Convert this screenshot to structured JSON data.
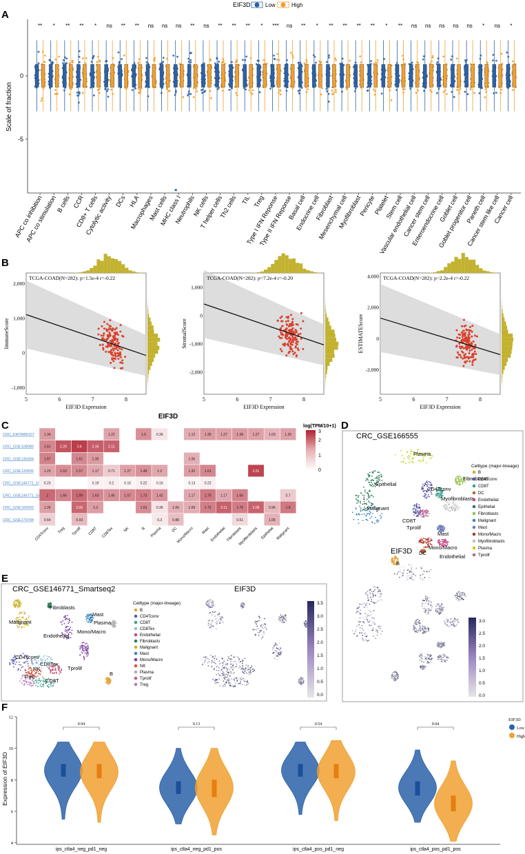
{
  "figure": {
    "panel_labels": [
      "A",
      "B",
      "C",
      "D",
      "E",
      "F"
    ],
    "colors": {
      "low": "#2a62a9",
      "high": "#f0a030",
      "scatter": "#d8432e",
      "hist": "#c2b230",
      "heat_max": "#b0202f",
      "umap_max": "#27285e",
      "link": "#4a86c8"
    }
  },
  "panelA": {
    "legend_title": "EIF3D",
    "legend_low": "Low",
    "legend_high": "High",
    "ylabel": "Scale of fraction",
    "yticks": [
      "0",
      "-5"
    ]
  },
  "panelB": {
    "xlabel": "EIF3D Expression",
    "xticks": [
      "5",
      "6",
      "7",
      "8"
    ],
    "plots": [
      {
        "annot": "TCGA-COAD(N=282): p=1.5e-4 r=-0.22",
        "ylabel": "ImmuneScore",
        "yticks": [
          "2,000",
          "1,000",
          "0",
          "-1,000"
        ],
        "ylim": [
          -1200,
          2300
        ],
        "line": [
          1100,
          -80
        ]
      },
      {
        "annot": "TCGA-COAD(N=282): p=7.2e-4 r=-0.20",
        "ylabel": "StromalScore",
        "yticks": [
          "1,000",
          "0",
          "-1,000",
          "-2,000"
        ],
        "ylim": [
          -2800,
          1500
        ],
        "line": [
          400,
          -1050
        ]
      },
      {
        "annot": "TCGA-COAD(N=282): p=2.2e-4 r=-0.22",
        "ylabel": "ESTIMATEScore",
        "yticks": [
          "4,000",
          "2,000",
          "0",
          "-2,000"
        ],
        "ylim": [
          -3600,
          4200
        ],
        "line": [
          1300,
          -1050
        ]
      }
    ]
  },
  "panelC": {
    "title": "EIF3D",
    "legend_title": "log(TPM/10+1)",
    "legend_ticks": [
      "3",
      "2",
      "1",
      "0"
    ]
  },
  "panelD": {
    "title": "CRC_GSE166555",
    "feature_title": "EIF3D",
    "legend_title": "Celltype (major-lineage)",
    "legend_items": [
      "B",
      "CD4Tconv",
      "CD8T",
      "DC",
      "Endothelial",
      "Epithelial",
      "Fibroblasts",
      "Malignant",
      "Mast",
      "Mono/Macro",
      "Myofibroblasts",
      "Plasma",
      "Tprolif"
    ],
    "legend_colors": [
      "#e6a33a",
      "#5a5aa8",
      "#3f9f8d",
      "#b06a3a",
      "#c84a83",
      "#2e7d55",
      "#96c24b",
      "#3f86b8",
      "#6f7ab8",
      "#b8382a",
      "#c0c0c0",
      "#c9cc1a",
      "#b86a9c"
    ],
    "cluster_labels": [
      "Plasma",
      "Fibroblasts",
      "Epithelial",
      "CD4Tconv",
      "Myofibroblasts",
      "Malignant",
      "CD8T",
      "Tprolif",
      "Mast",
      "Mono/Macro",
      "DC",
      "Endothelial",
      "B"
    ],
    "colorbar_ticks": [
      "3.0",
      "2.5",
      "2.0",
      "1.5",
      "1.0",
      "0.5",
      "0.0"
    ]
  },
  "panelE": {
    "title": "CRC_GSE146771_Smartseq2",
    "feature_title": "EIF3D",
    "legend_title": "Celltype (major-lineage)",
    "legend_items": [
      "B",
      "CD4Tconv",
      "CD8T",
      "CD8Tex",
      "Endothelial",
      "Fibroblasts",
      "Malignant",
      "Mast",
      "Mono/Macro",
      "NK",
      "Plasma",
      "Tprolif",
      "Treg"
    ],
    "legend_colors": [
      "#e6a33a",
      "#5a5aa8",
      "#3f9f8d",
      "#8fc1d8",
      "#c84a83",
      "#2e7d55",
      "#c9b12a",
      "#3f86b8",
      "#7b3fa0",
      "#d2583a",
      "#b0b0b0",
      "#c05a80",
      "#b87ab8"
    ],
    "cluster_labels": [
      "Fibroblasts",
      "Malignant",
      "Endothelial",
      "Mast",
      "Plasma",
      "Mono/Macro",
      "CD4Tconv",
      "CD8Tex",
      "NK",
      "Tprolif",
      "Treg",
      "CD8T",
      "B"
    ],
    "colorbar_ticks": [
      "3.5",
      "3.0",
      "2.5",
      "2.0",
      "1.5",
      "1.0",
      "0.5",
      "0.0"
    ]
  },
  "panelF": {
    "ylabel": "Expression of EIF3D",
    "yticks": [
      "12",
      "10",
      "8",
      "6",
      "4"
    ],
    "legend_title": "EIF3D",
    "legend_low": "Low",
    "legend_high": "High"
  },
  "chart_data": [
    {
      "type": "scatter",
      "panel": "A",
      "ylabel": "Scale of fraction",
      "ylim": [
        -10,
        3
      ],
      "legend": {
        "title": "EIF3D",
        "entries": [
          "Low",
          "High"
        ],
        "placement": "top"
      },
      "categories": [
        "APC co inhibition",
        "APC co stimulation",
        "B cells",
        "CCR",
        "CD8+ T cells",
        "Cytolytic activity",
        "DCs",
        "HLA",
        "Macrophages",
        "Mast cells",
        "MHC class I",
        "Neutrophils",
        "NK cells",
        "T helper cells",
        "Th2 cells",
        "TIL",
        "Treg",
        "Type I IFN Reponse",
        "Type II IFN Reponse",
        "Basal cell",
        "Endocrine cell",
        "Fibroblast",
        "Mesenchymal cell",
        "Myofibroblast",
        "Pericyte",
        "Platelet",
        "Stem cell",
        "Vascular endothelial cell",
        "Cancer stem cell",
        "Enteroendocrine cell",
        "Goblet cell",
        "Goblet progenitor cell",
        "Paneth cell",
        "Cancer stem like cell",
        "Cancer cell"
      ],
      "significance": [
        "**",
        "*",
        "**",
        "**",
        "*",
        "ns",
        "**",
        "**",
        "ns",
        "ns",
        "ns",
        "**",
        "ns",
        "**",
        "**",
        "**",
        "*",
        "***",
        "ns",
        "**",
        "*",
        "**",
        "**",
        "**",
        "**",
        "*",
        "**",
        "ns",
        "ns",
        "ns",
        "ns",
        "ns",
        "*",
        "ns",
        "*"
      ],
      "series": [
        {
          "name": "Low"
        },
        {
          "name": "High"
        }
      ]
    },
    {
      "type": "scatter",
      "panel": "B",
      "subplots": [
        {
          "xlabel": "EIF3D Expression",
          "ylabel": "ImmuneScore",
          "xlim": [
            5,
            8.6
          ],
          "ylim": [
            -1200,
            2300
          ],
          "annotation": "TCGA-COAD(N=282): p=1.5e-4 r=-0.22"
        },
        {
          "xlabel": "EIF3D Expression",
          "ylabel": "StromalScore",
          "xlim": [
            5,
            8.6
          ],
          "ylim": [
            -2800,
            1500
          ],
          "annotation": "TCGA-COAD(N=282): p=7.2e-4 r=-0.20"
        },
        {
          "xlabel": "EIF3D Expression",
          "ylabel": "ESTIMATEScore",
          "xlim": [
            5,
            8.6
          ],
          "ylim": [
            -3600,
            4200
          ],
          "annotation": "TCGA-COAD(N=282): p=2.2e-4 r=-0.22"
        }
      ]
    },
    {
      "type": "heatmap",
      "panel": "C",
      "title": "EIF3D",
      "legend_title": "log(TPM/10+1)",
      "columns": [
        "CD4Tconv",
        "Treg",
        "Tprolif",
        "CD8T",
        "CD8Tex",
        "NK",
        "B",
        "Plasma",
        "DC",
        "Mono/Macro",
        "Mast",
        "Endothelial",
        "Fibroblasts",
        "Myofibroblasts",
        "Epithelial",
        "Malignant"
      ],
      "rows": [
        "CRC_EMTAB8107",
        "CRC_GSE108989",
        "CRC_GSE136394",
        "CRC_GSE139555",
        "CRC_GSE146771_10X",
        "CRC_GSE146771_Smartseq2",
        "CRC_GSE166555",
        "CRC_GSE179784"
      ],
      "values": [
        [
          1.34,
          null,
          null,
          null,
          1.22,
          null,
          1.5,
          0.36,
          null,
          1.12,
          1.35,
          1.27,
          1.36,
          1.27,
          1.03,
          1.26
        ],
        [
          1.61,
          2.29,
          2.6,
          2.16,
          2.11,
          null,
          null,
          null,
          null,
          null,
          null,
          null,
          null,
          null,
          null,
          null
        ],
        [
          1.67,
          null,
          1.61,
          1.35,
          null,
          null,
          null,
          null,
          null,
          1.06,
          null,
          null,
          null,
          null,
          null,
          null
        ],
        [
          1.23,
          1.53,
          1.57,
          1.17,
          0.71,
          1.27,
          1.48,
          1.2,
          null,
          1.32,
          1.61,
          null,
          null,
          2.51,
          null,
          null
        ],
        [
          0.23,
          null,
          null,
          0.19,
          0.2,
          0.15,
          0.22,
          0.16,
          null,
          0.13,
          0.22,
          null,
          null,
          null,
          null,
          null
        ],
        [
          2,
          1.66,
          1.99,
          1.63,
          1.46,
          1.57,
          1.73,
          1.42,
          null,
          1.17,
          1.79,
          1.17,
          1.65,
          null,
          null,
          0.7
        ],
        [
          1.26,
          null,
          2.05,
          1.3,
          null,
          null,
          1.53,
          0.36,
          1.06,
          1.09,
          1.72,
          2.11,
          1.76,
          2.09,
          0.96,
          1.8
        ],
        [
          0.64,
          null,
          0.93,
          null,
          null,
          null,
          null,
          0.3,
          0.88,
          null,
          null,
          null,
          0.51,
          null,
          1.05,
          null
        ]
      ]
    },
    {
      "type": "scatter",
      "panel": "F",
      "subtype": "violin",
      "ylabel": "Expression of EIF3D",
      "ylim": [
        3.9,
        12
      ],
      "categories": [
        "ips_ctla4_neg_pd1_neg",
        "ips_ctla4_neg_pd1_pos",
        "ips_ctla4_pos_pd1_neg",
        "ips_ctla4_pos_pd1_pos"
      ],
      "p_values": [
        "0.94",
        "0.13",
        "0.54",
        "0.04"
      ],
      "legend": {
        "title": "EIF3D",
        "entries": [
          "Low",
          "High"
        ],
        "placement": "right"
      },
      "series": [
        {
          "name": "Low",
          "box": [
            [
              8.2,
              8.6,
              9.0
            ],
            [
              7.1,
              7.5,
              7.9
            ],
            [
              8.2,
              8.6,
              9.0
            ],
            [
              7.0,
              7.5,
              7.9
            ]
          ],
          "range": [
            [
              5.5,
              10.4
            ],
            [
              5.2,
              10.0
            ],
            [
              5.8,
              10.4
            ],
            [
              5.3,
              9.9
            ]
          ]
        },
        {
          "name": "High",
          "box": [
            [
              8.1,
              8.5,
              9.0
            ],
            [
              6.9,
              7.5,
              8.0
            ],
            [
              8.1,
              8.5,
              9.0
            ],
            [
              6.0,
              6.5,
              7.0
            ]
          ],
          "range": [
            [
              5.3,
              10.4
            ],
            [
              4.5,
              10.0
            ],
            [
              5.4,
              10.5
            ],
            [
              4.1,
              9.2
            ]
          ]
        }
      ]
    }
  ]
}
